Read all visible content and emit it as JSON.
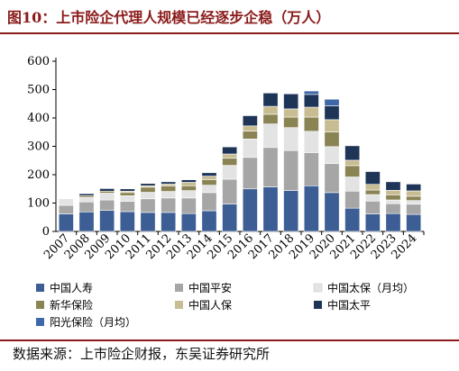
{
  "figure_title": "图10：上市险企代理人规模已经逐步企稳（万人）",
  "source_note": "数据来源：上市险企财报，东吴证券研究所",
  "chart_data": {
    "type": "bar",
    "stacked": true,
    "title": "",
    "xlabel": "",
    "ylabel": "",
    "ylim": [
      0,
      600
    ],
    "yticks": [
      0,
      100,
      200,
      300,
      400,
      500,
      600
    ],
    "grid": false,
    "legend_position": "bottom",
    "categories": [
      "2007",
      "2008",
      "2009",
      "2010",
      "2011",
      "2012",
      "2013",
      "2014",
      "2015",
      "2016",
      "2017",
      "2018",
      "2019",
      "2020",
      "2021",
      "2022",
      "2023",
      "2024"
    ],
    "series": [
      {
        "name": "中国人寿",
        "color": "#3c5e94",
        "values": [
          62,
          69,
          74,
          70,
          67,
          67,
          63,
          73,
          97,
          150,
          157,
          144,
          161,
          137,
          82,
          62,
          63,
          60
        ]
      },
      {
        "name": "中国平安",
        "color": "#a6a6a6",
        "values": [
          30,
          35,
          37,
          36,
          48,
          51,
          55,
          64,
          87,
          111,
          139,
          141,
          117,
          102,
          60,
          45,
          35,
          36
        ]
      },
      {
        "name": "中国太保（月均）",
        "color": "#e3e3e3",
        "values": [
          23,
          16,
          24,
          20,
          23,
          23,
          26,
          26,
          49,
          65,
          83,
          81,
          75,
          60,
          50,
          23,
          13,
          13
        ]
      },
      {
        "name": "新华保险",
        "color": "#8a8354",
        "values": [
          0,
          6,
          7,
          11,
          18,
          19,
          17,
          20,
          25,
          28,
          34,
          37,
          50,
          52,
          40,
          16,
          18,
          15
        ]
      },
      {
        "name": "中国人保",
        "color": "#c8bd92",
        "values": [
          0,
          0,
          0,
          5,
          5,
          7,
          12,
          12,
          15,
          18,
          28,
          29,
          35,
          43,
          19,
          20,
          16,
          19
        ]
      },
      {
        "name": "中国太平",
        "color": "#1f3558",
        "values": [
          0,
          7,
          9,
          8,
          8,
          8,
          9,
          12,
          25,
          36,
          47,
          53,
          45,
          49,
          51,
          45,
          30,
          24
        ]
      },
      {
        "name": "阳光保险（月均）",
        "color": "#3e68a8",
        "values": [
          0,
          0,
          0,
          0,
          0,
          0,
          0,
          0,
          0,
          0,
          0,
          0,
          12,
          23,
          0,
          0,
          0,
          0
        ]
      }
    ]
  }
}
